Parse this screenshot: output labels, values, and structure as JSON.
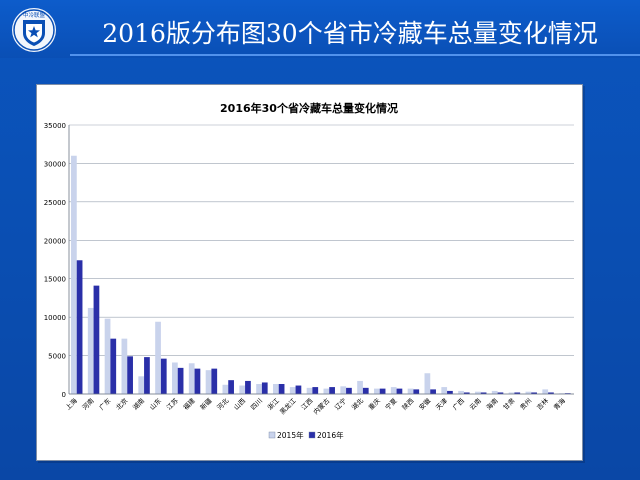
{
  "slide": {
    "title": "2016版分布图30个省市冷藏车总量变化情况",
    "logo_text": "中冷联盟",
    "logo_icon": "shield-star-emblem"
  },
  "chart_data": {
    "type": "bar",
    "title": "2016年30个省冷藏车总量变化情况",
    "xlabel": "",
    "ylabel": "",
    "ylim": [
      0,
      35000
    ],
    "yticks": [
      0,
      5000,
      10000,
      15000,
      20000,
      25000,
      30000,
      35000
    ],
    "grid": true,
    "legend_position": "bottom-left",
    "categories": [
      "上海",
      "河南",
      "广东",
      "北京",
      "湖南",
      "山东",
      "江苏",
      "福建",
      "新疆",
      "河北",
      "山西",
      "四川",
      "浙江",
      "黑龙江",
      "江西",
      "内蒙古",
      "辽宁",
      "湖北",
      "重庆",
      "宁夏",
      "陕西",
      "安徽",
      "天津",
      "广西",
      "云南",
      "海南",
      "甘肃",
      "贵州",
      "吉林",
      "青海"
    ],
    "series": [
      {
        "name": "2015年",
        "color": "#c9d3ec",
        "values": [
          31000,
          11200,
          9800,
          7200,
          2300,
          9400,
          4100,
          4000,
          3100,
          1200,
          1100,
          1300,
          1300,
          900,
          800,
          700,
          1000,
          1700,
          700,
          900,
          700,
          2700,
          900,
          400,
          300,
          400,
          200,
          300,
          600,
          100
        ]
      },
      {
        "name": "2016年",
        "color": "#2a2fa8",
        "values": [
          17400,
          14100,
          7200,
          4900,
          4800,
          4600,
          3400,
          3300,
          3300,
          1800,
          1700,
          1500,
          1300,
          1100,
          900,
          900,
          800,
          800,
          700,
          700,
          600,
          600,
          400,
          200,
          200,
          200,
          200,
          200,
          200,
          100
        ]
      }
    ]
  }
}
